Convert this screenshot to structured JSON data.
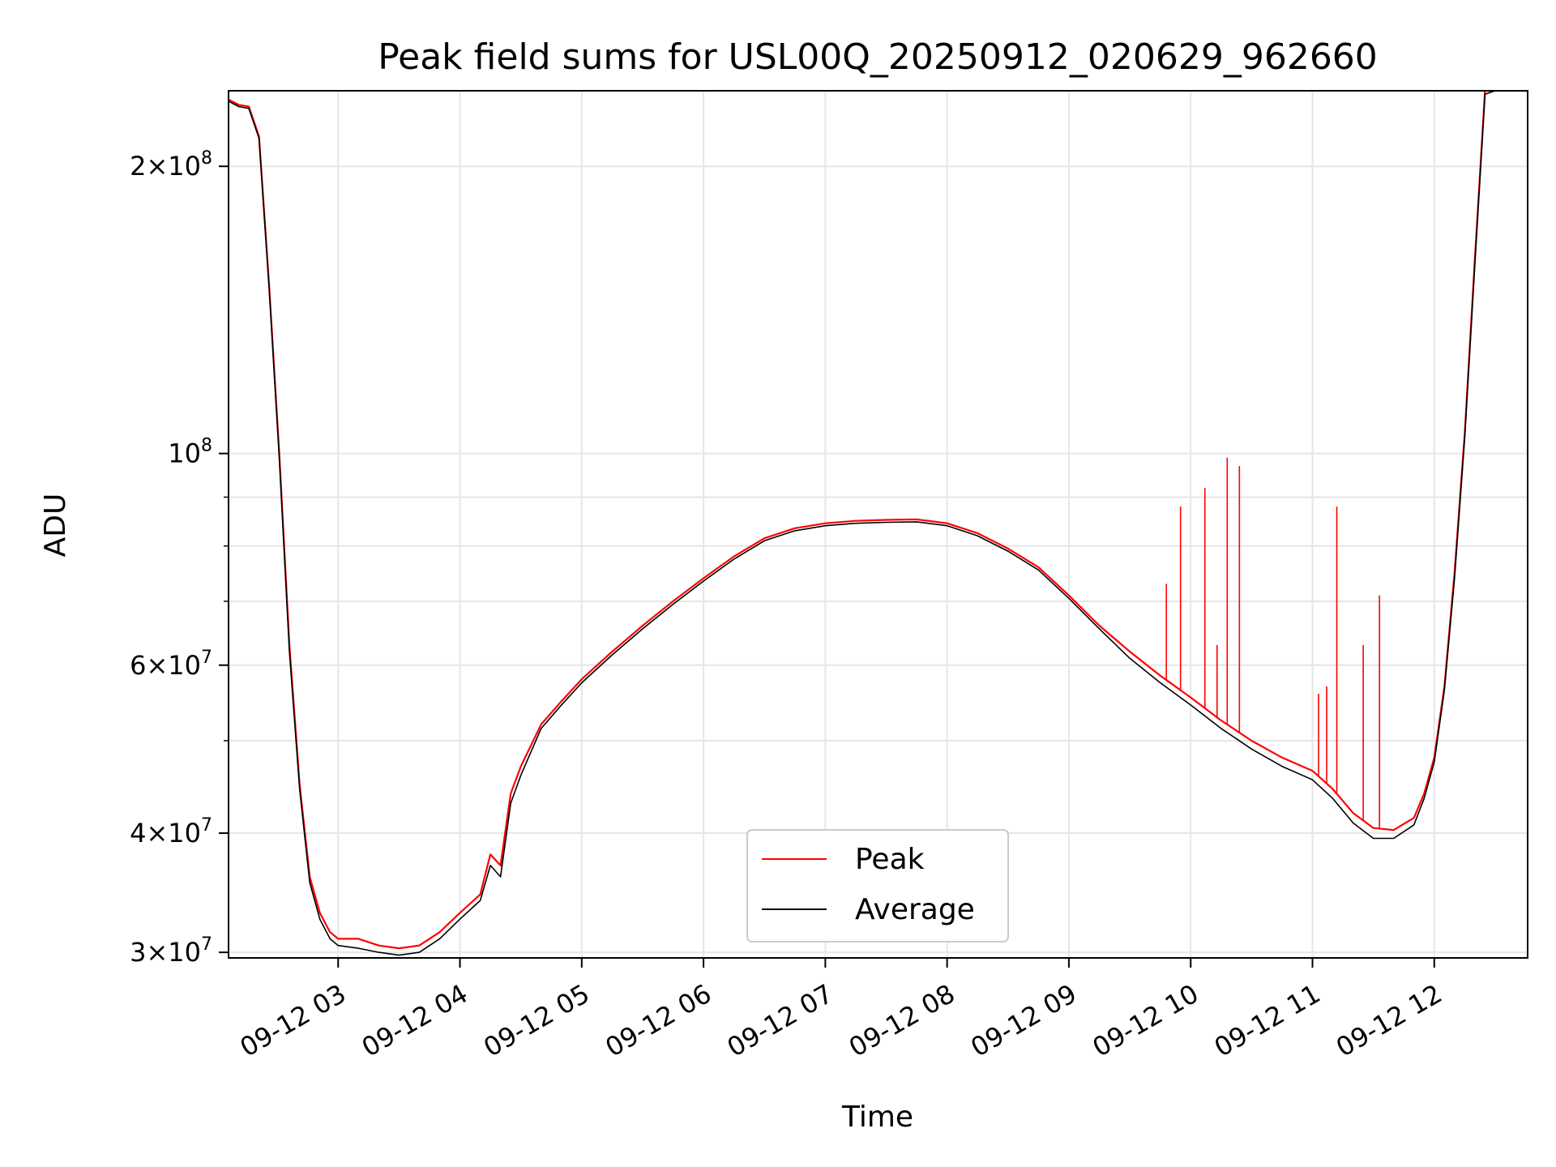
{
  "chart_data": {
    "type": "line",
    "title": "Peak field sums for USL00Q_20250912_020629_962660",
    "xlabel": "Time",
    "ylabel": "ADU",
    "yscale": "log",
    "ylim": [
      29600000,
      240000000
    ],
    "xlim": [
      "2025-09-12 02:06",
      "2025-09-12 12:46"
    ],
    "grid": true,
    "legend_position": "bottom-center",
    "x_ticks": [
      {
        "t": "2025-09-12 03:00",
        "label": "09-12 03"
      },
      {
        "t": "2025-09-12 04:00",
        "label": "09-12 04"
      },
      {
        "t": "2025-09-12 05:00",
        "label": "09-12 05"
      },
      {
        "t": "2025-09-12 06:00",
        "label": "09-12 06"
      },
      {
        "t": "2025-09-12 07:00",
        "label": "09-12 07"
      },
      {
        "t": "2025-09-12 08:00",
        "label": "09-12 08"
      },
      {
        "t": "2025-09-12 09:00",
        "label": "09-12 09"
      },
      {
        "t": "2025-09-12 10:00",
        "label": "09-12 10"
      },
      {
        "t": "2025-09-12 11:00",
        "label": "09-12 11"
      },
      {
        "t": "2025-09-12 12:00",
        "label": "09-12 12"
      }
    ],
    "y_ticks": [
      {
        "value": 30000000,
        "base": "3",
        "exp": "7"
      },
      {
        "value": 40000000,
        "base": "4",
        "exp": "7"
      },
      {
        "value": 60000000,
        "base": "6",
        "exp": "7"
      },
      {
        "value": 100000000,
        "base": "",
        "exp": "8"
      },
      {
        "value": 200000000,
        "base": "2",
        "exp": "8"
      }
    ],
    "y_minor_ticks": [
      50000000,
      70000000,
      80000000,
      90000000
    ],
    "series": [
      {
        "name": "Peak",
        "color": "#ff0000",
        "x": [
          "2025-09-12 02:06",
          "2025-09-12 02:11",
          "2025-09-12 02:16",
          "2025-09-12 02:21",
          "2025-09-12 02:26",
          "2025-09-12 02:31",
          "2025-09-12 02:36",
          "2025-09-12 02:41",
          "2025-09-12 02:46",
          "2025-09-12 02:51",
          "2025-09-12 02:56",
          "2025-09-12 03:00",
          "2025-09-12 03:10",
          "2025-09-12 03:20",
          "2025-09-12 03:30",
          "2025-09-12 03:40",
          "2025-09-12 03:50",
          "2025-09-12 04:00",
          "2025-09-12 04:10",
          "2025-09-12 04:15",
          "2025-09-12 04:20",
          "2025-09-12 04:25",
          "2025-09-12 04:30",
          "2025-09-12 04:40",
          "2025-09-12 04:50",
          "2025-09-12 05:00",
          "2025-09-12 05:15",
          "2025-09-12 05:30",
          "2025-09-12 05:45",
          "2025-09-12 06:00",
          "2025-09-12 06:15",
          "2025-09-12 06:30",
          "2025-09-12 06:45",
          "2025-09-12 07:00",
          "2025-09-12 07:15",
          "2025-09-12 07:30",
          "2025-09-12 07:45",
          "2025-09-12 08:00",
          "2025-09-12 08:15",
          "2025-09-12 08:30",
          "2025-09-12 08:45",
          "2025-09-12 09:00",
          "2025-09-12 09:15",
          "2025-09-12 09:30",
          "2025-09-12 09:45",
          "2025-09-12 10:00",
          "2025-09-12 10:15",
          "2025-09-12 10:30",
          "2025-09-12 10:45",
          "2025-09-12 11:00",
          "2025-09-12 11:10",
          "2025-09-12 11:20",
          "2025-09-12 11:30",
          "2025-09-12 11:40",
          "2025-09-12 11:50",
          "2025-09-12 11:55",
          "2025-09-12 12:00",
          "2025-09-12 12:05",
          "2025-09-12 12:10",
          "2025-09-12 12:15",
          "2025-09-12 12:20",
          "2025-09-12 12:25",
          "2025-09-12 12:30",
          "2025-09-12 12:35",
          "2025-09-12 12:40",
          "2025-09-12 12:46"
        ],
        "values": [
          235000000,
          232000000,
          231000000,
          215000000,
          150000000,
          100000000,
          63000000,
          45000000,
          36000000,
          33000000,
          31500000,
          31000000,
          31000000,
          30500000,
          30300000,
          30500000,
          31500000,
          33000000,
          34500000,
          38000000,
          37000000,
          44000000,
          47000000,
          52000000,
          55000000,
          58000000,
          62000000,
          66000000,
          70000000,
          74000000,
          78000000,
          81500000,
          83500000,
          84500000,
          85000000,
          85200000,
          85300000,
          84500000,
          82500000,
          79500000,
          76000000,
          71000000,
          66000000,
          62000000,
          58500000,
          55500000,
          52500000,
          50000000,
          48000000,
          46500000,
          44500000,
          42000000,
          40500000,
          40300000,
          41500000,
          44000000,
          48000000,
          57000000,
          75000000,
          105000000,
          160000000,
          240000000,
          240000000,
          240000000,
          240000000,
          240000000
        ],
        "spikes": [
          {
            "t": "2025-09-12 09:48",
            "value": 73000000
          },
          {
            "t": "2025-09-12 09:55",
            "value": 88000000
          },
          {
            "t": "2025-09-12 10:07",
            "value": 92000000
          },
          {
            "t": "2025-09-12 10:13",
            "value": 63000000
          },
          {
            "t": "2025-09-12 10:18",
            "value": 99000000
          },
          {
            "t": "2025-09-12 10:24",
            "value": 97000000
          },
          {
            "t": "2025-09-12 11:12",
            "value": 88000000
          },
          {
            "t": "2025-09-12 11:25",
            "value": 63000000
          },
          {
            "t": "2025-09-12 11:33",
            "value": 71000000
          },
          {
            "t": "2025-09-12 11:03",
            "value": 56000000
          },
          {
            "t": "2025-09-12 11:07",
            "value": 57000000
          }
        ]
      },
      {
        "name": "Average",
        "color": "#000000",
        "x": [
          "2025-09-12 02:06",
          "2025-09-12 02:11",
          "2025-09-12 02:16",
          "2025-09-12 02:21",
          "2025-09-12 02:26",
          "2025-09-12 02:31",
          "2025-09-12 02:36",
          "2025-09-12 02:41",
          "2025-09-12 02:46",
          "2025-09-12 02:51",
          "2025-09-12 02:56",
          "2025-09-12 03:00",
          "2025-09-12 03:10",
          "2025-09-12 03:20",
          "2025-09-12 03:30",
          "2025-09-12 03:40",
          "2025-09-12 03:50",
          "2025-09-12 04:00",
          "2025-09-12 04:10",
          "2025-09-12 04:15",
          "2025-09-12 04:20",
          "2025-09-12 04:25",
          "2025-09-12 04:30",
          "2025-09-12 04:40",
          "2025-09-12 04:50",
          "2025-09-12 05:00",
          "2025-09-12 05:15",
          "2025-09-12 05:30",
          "2025-09-12 05:45",
          "2025-09-12 06:00",
          "2025-09-12 06:15",
          "2025-09-12 06:30",
          "2025-09-12 06:45",
          "2025-09-12 07:00",
          "2025-09-12 07:15",
          "2025-09-12 07:30",
          "2025-09-12 07:45",
          "2025-09-12 08:00",
          "2025-09-12 08:15",
          "2025-09-12 08:30",
          "2025-09-12 08:45",
          "2025-09-12 09:00",
          "2025-09-12 09:15",
          "2025-09-12 09:30",
          "2025-09-12 09:45",
          "2025-09-12 10:00",
          "2025-09-12 10:15",
          "2025-09-12 10:30",
          "2025-09-12 10:45",
          "2025-09-12 11:00",
          "2025-09-12 11:10",
          "2025-09-12 11:20",
          "2025-09-12 11:30",
          "2025-09-12 11:40",
          "2025-09-12 11:50",
          "2025-09-12 11:55",
          "2025-09-12 12:00",
          "2025-09-12 12:05",
          "2025-09-12 12:10",
          "2025-09-12 12:15",
          "2025-09-12 12:20",
          "2025-09-12 12:25",
          "2025-09-12 12:30",
          "2025-09-12 12:35",
          "2025-09-12 12:40",
          "2025-09-12 12:46"
        ],
        "values": [
          234000000,
          231000000,
          230000000,
          214000000,
          149000000,
          99000000,
          62000000,
          44500000,
          35500000,
          32500000,
          31000000,
          30500000,
          30300000,
          30000000,
          29800000,
          30000000,
          31000000,
          32500000,
          34000000,
          37000000,
          36000000,
          43000000,
          46000000,
          51500000,
          54500000,
          57500000,
          61500000,
          65500000,
          69500000,
          73500000,
          77500000,
          81000000,
          83000000,
          84000000,
          84500000,
          84700000,
          84800000,
          84000000,
          82000000,
          79000000,
          75500000,
          70500000,
          65500000,
          61000000,
          57500000,
          54500000,
          51500000,
          49000000,
          47000000,
          45500000,
          43500000,
          41000000,
          39500000,
          39500000,
          40800000,
          43500000,
          47500000,
          56500000,
          74000000,
          104000000,
          158000000,
          238000000,
          240000000,
          240000000,
          240000000,
          240000000
        ]
      }
    ]
  }
}
